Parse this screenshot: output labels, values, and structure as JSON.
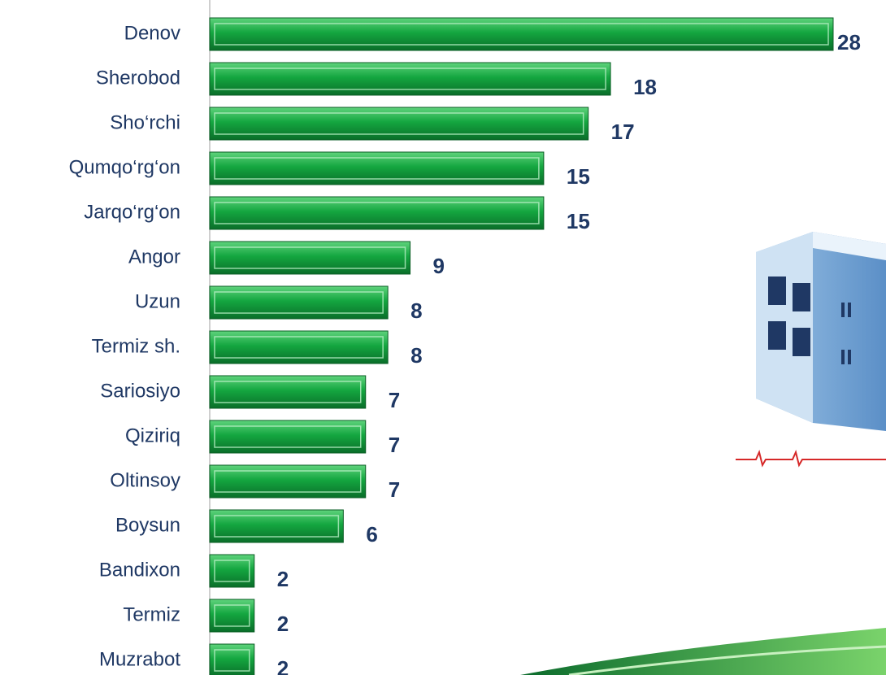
{
  "chart_data": {
    "type": "bar",
    "orientation": "horizontal",
    "categories": [
      "Denov",
      "Sherobod",
      "Sho‘rchi",
      "Qumqo‘rg‘on",
      "Jarqo‘rg‘on",
      "Angor",
      "Uzun",
      "Termiz sh.",
      "Sariosiyo",
      "Qiziriq",
      "Oltinsoy",
      "Boysun",
      "Bandixon",
      "Termiz",
      "Muzrabot"
    ],
    "values": [
      28,
      18,
      17,
      15,
      15,
      9,
      8,
      8,
      7,
      7,
      7,
      6,
      2,
      2,
      2
    ],
    "color": "#10a23c",
    "xlim": [
      0,
      28
    ]
  }
}
